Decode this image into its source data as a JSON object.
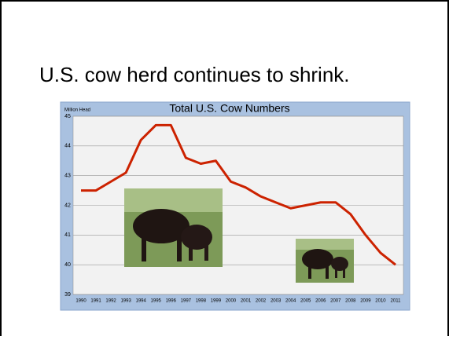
{
  "slide": {
    "title": "U.S. cow herd continues to shrink."
  },
  "chart_data": {
    "type": "line",
    "title": "Total U.S. Cow Numbers",
    "y_label": "Million Head",
    "categories": [
      "1990",
      "1991",
      "1992",
      "1993",
      "1994",
      "1995",
      "1996",
      "1997",
      "1998",
      "1999",
      "2000",
      "2001",
      "2002",
      "2003",
      "2004",
      "2005",
      "2006",
      "2007",
      "2008",
      "2009",
      "2010",
      "2011"
    ],
    "series": [
      {
        "name": "Total U.S. Cow Numbers",
        "color": "#cc2200",
        "values": [
          42.5,
          42.5,
          42.8,
          43.1,
          44.2,
          44.7,
          44.7,
          43.6,
          43.4,
          43.5,
          42.8,
          42.6,
          42.3,
          42.1,
          41.9,
          42.0,
          42.1,
          42.1,
          41.7,
          41.0,
          40.4,
          40.0
        ]
      }
    ],
    "ylim": [
      39,
      45
    ],
    "yticks": [
      39,
      40,
      41,
      42,
      43,
      44,
      45
    ],
    "grid": true
  }
}
